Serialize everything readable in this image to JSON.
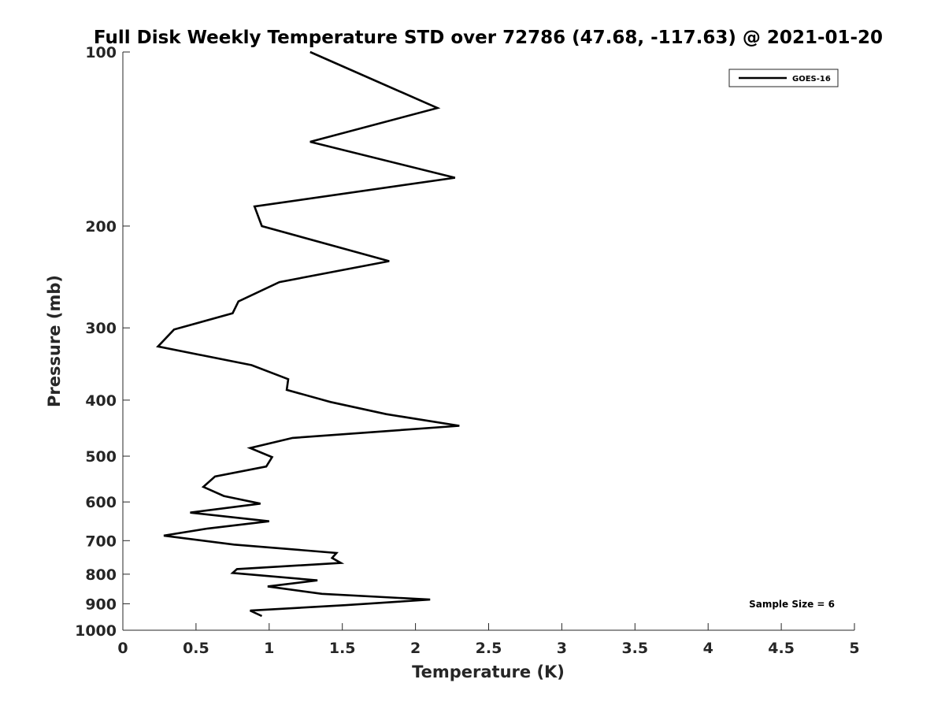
{
  "chart_data": {
    "type": "line",
    "title": "Full Disk Weekly Temperature STD over 72786 (47.68, -117.63) @ 2021-01-20",
    "xlabel": "Temperature (K)",
    "ylabel": "Pressure (mb)",
    "xlim": [
      0,
      5
    ],
    "ylim": [
      100,
      1000
    ],
    "y_scale": "log",
    "y_reversed": true,
    "x_ticks": [
      0,
      0.5,
      1,
      1.5,
      2,
      2.5,
      3,
      3.5,
      4,
      4.5,
      5
    ],
    "x_tick_labels": [
      "0",
      "0.5",
      "1",
      "1.5",
      "2",
      "2.5",
      "3",
      "3.5",
      "4",
      "4.5",
      "5"
    ],
    "y_ticks": [
      100,
      200,
      300,
      400,
      500,
      600,
      700,
      800,
      900,
      1000
    ],
    "y_tick_labels": [
      "100",
      "200",
      "300",
      "400",
      "500",
      "600",
      "700",
      "800",
      "900",
      "1000"
    ],
    "grid": false,
    "legend_position": "top-right",
    "line_color": "#000000",
    "series": [
      {
        "name": "GOES-16",
        "x": [
          1.28,
          2.15,
          1.28,
          2.27,
          0.9,
          0.95,
          1.82,
          1.07,
          0.79,
          0.75,
          0.35,
          0.24,
          0.88,
          1.13,
          1.12,
          1.42,
          1.8,
          2.3,
          1.16,
          0.87,
          1.02,
          0.98,
          0.63,
          0.55,
          0.69,
          0.94,
          0.46,
          1.0,
          0.58,
          0.28,
          0.76,
          1.46,
          1.43,
          1.49,
          0.78,
          0.75,
          1.33,
          0.99,
          1.36,
          2.1,
          1.52,
          0.87,
          0.95
        ],
        "y": [
          100,
          125,
          143,
          165,
          185,
          200,
          230,
          250,
          270,
          283,
          302,
          323,
          348,
          368,
          384,
          403,
          423,
          443,
          465,
          484,
          502,
          521,
          542,
          565,
          586,
          604,
          626,
          648,
          667,
          686,
          711,
          735,
          750,
          765,
          784,
          796,
          820,
          840,
          865,
          885,
          905,
          925,
          945
        ]
      }
    ],
    "annotations": [
      "Sample Size = 6"
    ]
  }
}
